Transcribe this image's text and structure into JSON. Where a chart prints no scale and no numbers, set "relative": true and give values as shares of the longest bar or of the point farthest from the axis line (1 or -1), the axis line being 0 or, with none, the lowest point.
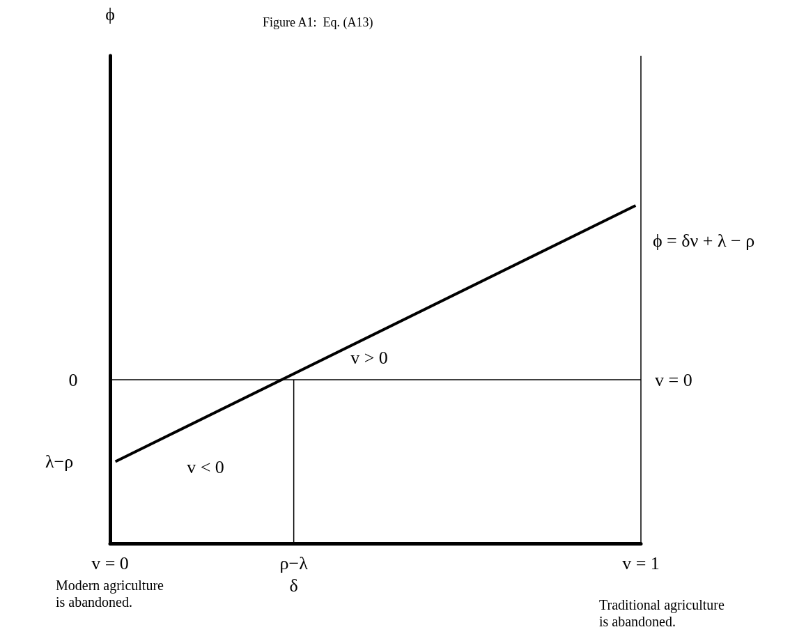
{
  "chart_data": {
    "type": "line",
    "title": "Figure A1:  Eq. (A13)",
    "relative": true,
    "x": [
      0.01,
      0.99
    ],
    "series": [
      {
        "color": "#000000",
        "values": [
          -0.47,
          1
        ]
      },
      {
        "color": "#000000",
        "x": [
          0.346,
          0.346
        ],
        "values": [
          -0.94,
          0
        ]
      }
    ],
    "xlim": [
      0,
      1
    ],
    "xticks": [
      {
        "value": 0,
        "label": "v = 0"
      },
      {
        "value": 0.346,
        "label": "ρ−λ\nδ"
      },
      {
        "value": 1,
        "label": "v = 1"
      }
    ],
    "ref_lines": [
      {
        "axis": "y",
        "value": 0,
        "label": "v = 0"
      },
      {
        "axis": "x",
        "value": 1,
        "label": null
      }
    ],
    "annotations": [
      "ϕ",
      "0",
      "λ−ρ",
      "v > 0",
      "v < 0",
      "ϕ = δν + λ − ρ",
      "Modern agriculture\nis abandoned.",
      "Traditional agriculture\nis abandoned."
    ],
    "grid": false,
    "marker": "none",
    "line_style": "solid"
  }
}
